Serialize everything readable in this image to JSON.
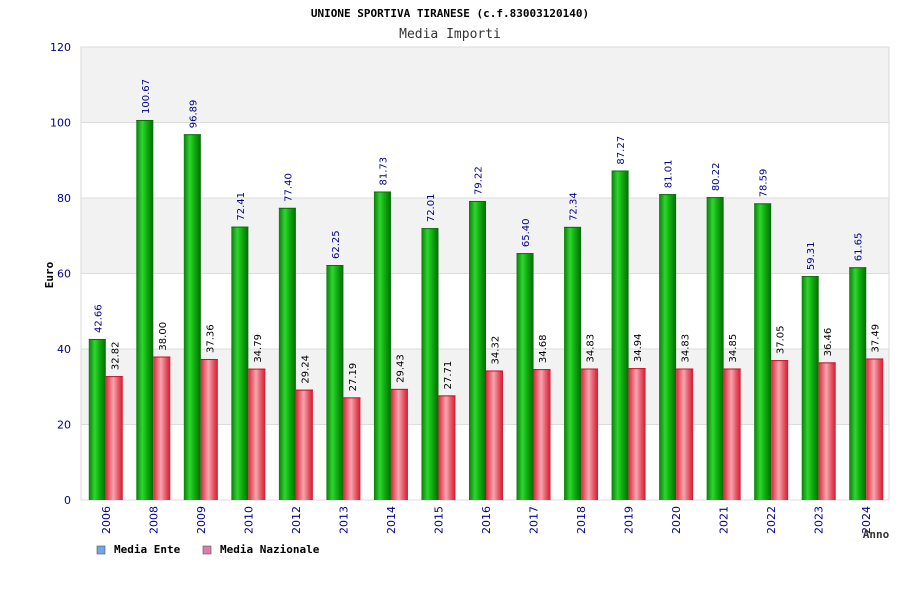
{
  "chart_data": {
    "type": "bar",
    "title": "UNIONE SPORTIVA TIRANESE (c.f.83003120140)",
    "subtitle": "Media Importi",
    "xlabel": "Anno",
    "ylabel": "Euro",
    "ylim": [
      0,
      120
    ],
    "yticks": [
      0,
      20,
      40,
      60,
      80,
      100,
      120
    ],
    "grid": true,
    "legend_position": "bottom-left",
    "categories": [
      "2006",
      "2008",
      "2009",
      "2010",
      "2012",
      "2013",
      "2014",
      "2015",
      "2016",
      "2017",
      "2018",
      "2019",
      "2020",
      "2021",
      "2022",
      "2023",
      "2024"
    ],
    "series": [
      {
        "name": "Media Ente",
        "color": "#0fa10f",
        "legend_color": "#6fa8e8",
        "label_color": "#00008b",
        "values": [
          42.66,
          100.67,
          96.89,
          72.41,
          77.4,
          62.25,
          81.73,
          72.01,
          79.22,
          65.4,
          72.34,
          87.27,
          81.01,
          80.22,
          78.59,
          59.31,
          61.65
        ],
        "labels": [
          "42.66",
          "100.67",
          "96.89",
          "72.41",
          "77.40",
          "62.25",
          "81.73",
          "72.01",
          "79.22",
          "65.40",
          "72.34",
          "87.27",
          "81.01",
          "80.22",
          "78.59",
          "59.31",
          "61.65"
        ]
      },
      {
        "name": "Media Nazionale",
        "color": "#e8485c",
        "legend_color": "#e07aa8",
        "label_color": "#000000",
        "values": [
          32.82,
          38.0,
          37.36,
          34.79,
          29.24,
          27.19,
          29.43,
          27.71,
          34.32,
          34.68,
          34.83,
          34.94,
          34.83,
          34.85,
          37.05,
          36.46,
          37.49
        ],
        "labels": [
          "32.82",
          "38.00",
          "37.36",
          "34.79",
          "29.24",
          "27.19",
          "29.43",
          "27.71",
          "34.32",
          "34.68",
          "34.83",
          "34.94",
          "34.83",
          "34.85",
          "37.05",
          "36.46",
          "37.49"
        ]
      }
    ]
  }
}
